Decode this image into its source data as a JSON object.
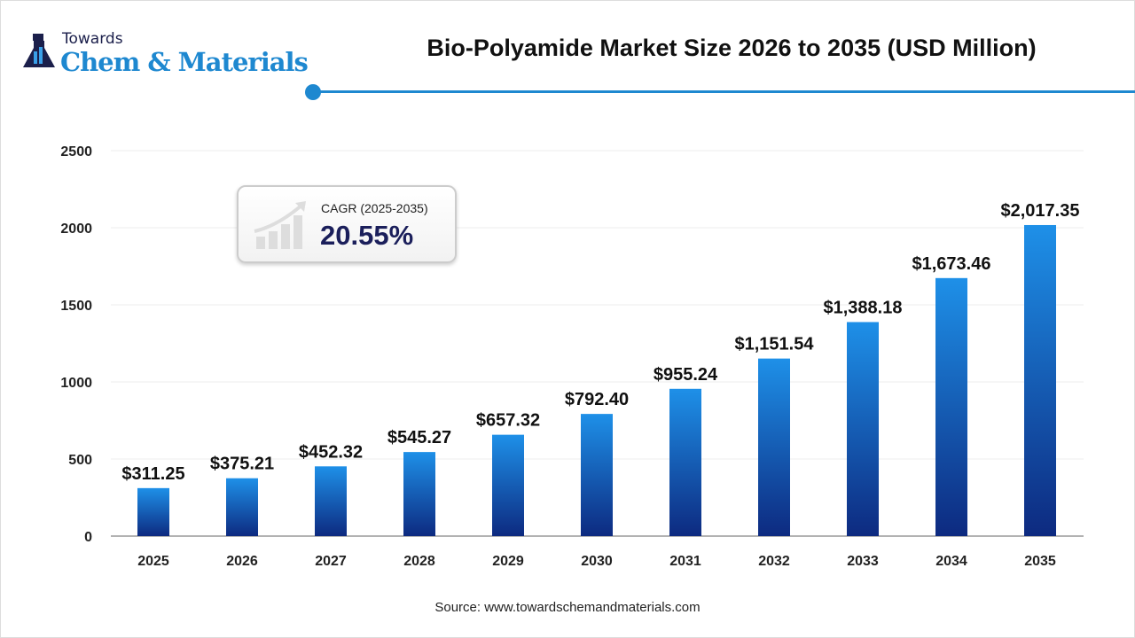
{
  "logo": {
    "line1": "Towards",
    "line2": "Chem & Materials"
  },
  "chart_data": {
    "type": "bar",
    "title": "Bio-Polyamide Market Size 2026 to 2035 (USD Million)",
    "categories": [
      "2025",
      "2026",
      "2027",
      "2028",
      "2029",
      "2030",
      "2031",
      "2032",
      "2033",
      "2034",
      "2035"
    ],
    "values": [
      311.25,
      375.21,
      452.32,
      545.27,
      657.32,
      792.4,
      955.24,
      1151.54,
      1388.18,
      1673.46,
      2017.35
    ],
    "data_labels": [
      "$311.25",
      "$375.21",
      "$452.32",
      "$545.27",
      "$657.32",
      "$792.40",
      "$955.24",
      "$1,151.54",
      "$1,388.18",
      "$1,673.46",
      "$2,017.35"
    ],
    "yticks": [
      "0",
      "500",
      "1000",
      "1500",
      "2000",
      "2500"
    ],
    "ylim": [
      0,
      2500
    ],
    "xlabel": "",
    "ylabel": "",
    "grid": true,
    "bar_color_top": "#1e90e8",
    "bar_color_bottom": "#0d2a80"
  },
  "cagr": {
    "label": "CAGR (2025-2035)",
    "value": "20.55%"
  },
  "source": "Source: www.towardschemandmaterials.com"
}
